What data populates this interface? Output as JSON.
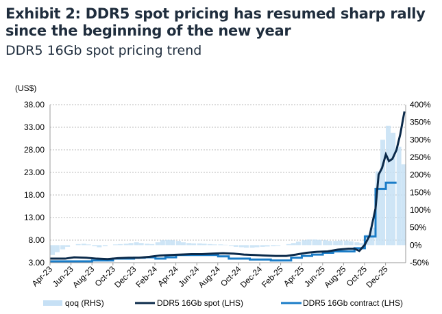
{
  "title": "Exhibit 2: DDR5 spot pricing has resumed sharp rally since the beginning of the new year",
  "subtitle": "DDR5 16Gb spot pricing trend",
  "chart_data": {
    "type": "line",
    "title": "Exhibit 2: DDR5 spot pricing has resumed sharp rally since the beginning of the new year",
    "subtitle": "DDR5 16Gb spot pricing trend",
    "left_axis_label": "(US$)",
    "ylim_left": [
      3,
      38
    ],
    "ylim_right": [
      -50,
      400
    ],
    "yticks_left": [
      "38.00",
      "33.00",
      "28.00",
      "23.00",
      "18.00",
      "13.00",
      "8.00",
      "3.00"
    ],
    "yticks_right": [
      "400%",
      "350%",
      "300%",
      "250%",
      "200%",
      "150%",
      "100%",
      "50%",
      "0%",
      "-50%"
    ],
    "xticks": [
      "Apr-23",
      "Jun-23",
      "Aug-23",
      "Oct-23",
      "Dec-23",
      "Feb-24",
      "Apr-24",
      "Jun-24",
      "Aug-24",
      "Oct-24",
      "Dec-24",
      "Feb-25",
      "Apr-25",
      "Jun-25",
      "Aug-25",
      "Oct-25",
      "Dec-25"
    ],
    "grid": true,
    "legend_position": "bottom",
    "colors": {
      "qoq": "#c6e0f5",
      "spot": "#0b2a4a",
      "contract": "#1a7cc7"
    },
    "series": [
      {
        "name": "qoq (RHS)",
        "type": "bar",
        "axis": "right",
        "x": [
          "2023-04-01",
          "2023-04-15",
          "2023-05-01",
          "2023-05-15",
          "2023-06-01",
          "2023-06-15",
          "2023-07-01",
          "2023-07-15",
          "2023-08-01",
          "2023-08-15",
          "2023-09-01",
          "2023-09-15",
          "2023-10-01",
          "2023-10-15",
          "2023-11-01",
          "2023-11-15",
          "2023-12-01",
          "2023-12-15",
          "2024-01-01",
          "2024-01-15",
          "2024-02-01",
          "2024-02-15",
          "2024-03-01",
          "2024-03-15",
          "2024-04-01",
          "2024-04-15",
          "2024-05-01",
          "2024-05-15",
          "2024-06-01",
          "2024-06-15",
          "2024-07-01",
          "2024-07-15",
          "2024-08-01",
          "2024-08-15",
          "2024-09-01",
          "2024-09-15",
          "2024-10-01",
          "2024-10-15",
          "2024-11-01",
          "2024-11-15",
          "2024-12-01",
          "2024-12-15",
          "2025-01-01",
          "2025-01-15",
          "2025-02-01",
          "2025-02-15",
          "2025-03-01",
          "2025-03-15",
          "2025-04-01",
          "2025-04-15",
          "2025-05-01",
          "2025-05-15",
          "2025-06-01",
          "2025-06-15",
          "2025-07-01",
          "2025-07-15",
          "2025-08-01",
          "2025-08-15",
          "2025-09-01",
          "2025-09-15",
          "2025-10-01",
          "2025-10-15",
          "2025-11-01",
          "2025-11-15",
          "2025-12-01",
          "2025-12-15",
          "2026-01-01",
          "2026-01-15"
        ],
        "values": [
          -28,
          -20,
          -12,
          -5,
          0,
          3,
          4,
          2,
          -3,
          -6,
          -3,
          0,
          2,
          3,
          4,
          6,
          8,
          6,
          4,
          3,
          8,
          14,
          15,
          14,
          12,
          8,
          6,
          5,
          5,
          4,
          3,
          2,
          2,
          1,
          -2,
          -5,
          -6,
          -7,
          -7,
          -6,
          -5,
          -4,
          -3,
          -2,
          0,
          3,
          6,
          10,
          14,
          16,
          16,
          15,
          14,
          12,
          12,
          13,
          13,
          11,
          8,
          6,
          30,
          50,
          210,
          300,
          340,
          320,
          280,
          230
        ]
      },
      {
        "name": "DDR5 16Gb spot (LHS)",
        "type": "line",
        "axis": "left",
        "x": [
          "2023-04-01",
          "2023-05-15",
          "2023-06-10",
          "2023-07-15",
          "2023-08-15",
          "2023-09-15",
          "2023-10-15",
          "2023-11-15",
          "2023-12-15",
          "2024-01-15",
          "2024-02-15",
          "2024-03-15",
          "2024-04-15",
          "2024-05-15",
          "2024-06-15",
          "2024-07-15",
          "2024-08-15",
          "2024-09-15",
          "2024-10-15",
          "2024-11-15",
          "2024-12-15",
          "2025-01-15",
          "2025-02-15",
          "2025-03-15",
          "2025-04-15",
          "2025-05-15",
          "2025-06-15",
          "2025-07-15",
          "2025-08-15",
          "2025-09-01",
          "2025-09-15",
          "2025-10-01",
          "2025-10-15",
          "2025-11-01",
          "2025-11-10",
          "2025-11-20",
          "2025-12-01",
          "2025-12-10",
          "2025-12-20",
          "2026-01-01",
          "2026-01-12",
          "2026-01-24"
        ],
        "values": [
          3.9,
          3.9,
          4.2,
          4.1,
          3.9,
          3.8,
          4.0,
          4.1,
          4.1,
          4.3,
          4.6,
          4.7,
          4.8,
          4.9,
          4.9,
          5.0,
          5.1,
          5.0,
          4.8,
          4.7,
          4.6,
          4.5,
          4.5,
          4.8,
          5.2,
          5.4,
          5.5,
          5.9,
          6.1,
          6.1,
          5.6,
          7.0,
          9.0,
          15.0,
          22.5,
          24.0,
          27.0,
          25.5,
          26.0,
          28.0,
          31.5,
          36.5
        ]
      },
      {
        "name": "DDR5 16Gb contract (LHS)",
        "type": "step",
        "axis": "left",
        "x": [
          "2023-04-01",
          "2023-08-01",
          "2023-10-01",
          "2023-12-01",
          "2024-01-01",
          "2024-02-01",
          "2024-03-01",
          "2024-04-01",
          "2024-08-01",
          "2024-09-01",
          "2024-11-01",
          "2025-01-01",
          "2025-03-01",
          "2025-04-01",
          "2025-05-01",
          "2025-06-01",
          "2025-07-01",
          "2025-09-01",
          "2025-10-01",
          "2025-11-01",
          "2025-12-01",
          "2026-01-01"
        ],
        "values": [
          3.3,
          3.5,
          3.9,
          4.1,
          4.2,
          3.9,
          4.2,
          4.7,
          4.4,
          3.9,
          3.7,
          3.5,
          4.1,
          4.5,
          4.8,
          5.2,
          5.5,
          6.2,
          8.8,
          19.3,
          20.7,
          20.7
        ]
      }
    ]
  }
}
